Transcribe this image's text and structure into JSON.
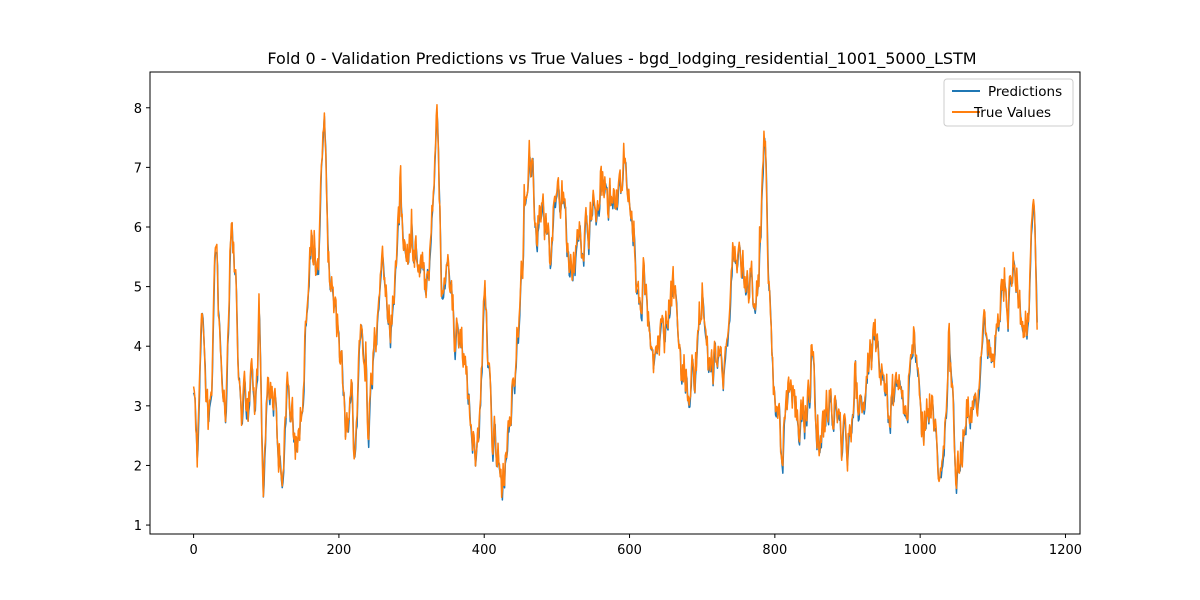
{
  "chart_data": {
    "type": "line",
    "title": "Fold 0 - Validation Predictions vs True Values - bgd_lodging_residential_1001_5000_LSTM",
    "xlabel": "",
    "ylabel": "",
    "xlim": [
      -60,
      1220
    ],
    "ylim": [
      0.85,
      8.6
    ],
    "x_ticks": [
      0,
      200,
      400,
      600,
      800,
      1000,
      1200
    ],
    "y_ticks": [
      1,
      2,
      3,
      4,
      5,
      6,
      7,
      8
    ],
    "grid": false,
    "legend_position": "top-right",
    "n_points": 1162,
    "series": [
      {
        "name": "Predictions",
        "color": "#1f77b4",
        "line_width": 1.5
      },
      {
        "name": "True Values",
        "color": "#ff7f0e",
        "line_width": 1.5
      }
    ],
    "true_values_envelope": {
      "x": [
        0,
        5,
        10,
        15,
        20,
        25,
        30,
        35,
        40,
        45,
        50,
        55,
        60,
        65,
        70,
        75,
        80,
        85,
        90,
        95,
        100,
        110,
        120,
        130,
        140,
        150,
        160,
        170,
        175,
        180,
        185,
        190,
        200,
        210,
        215,
        220,
        230,
        240,
        250,
        260,
        270,
        280,
        290,
        300,
        310,
        320,
        330,
        335,
        340,
        350,
        360,
        370,
        380,
        390,
        400,
        410,
        420,
        425,
        430,
        440,
        450,
        460,
        465,
        470,
        480,
        490,
        500,
        510,
        520,
        530,
        540,
        550,
        560,
        570,
        580,
        590,
        600,
        610,
        620,
        630,
        640,
        650,
        660,
        670,
        680,
        690,
        700,
        710,
        720,
        730,
        740,
        750,
        760,
        770,
        780,
        785,
        790,
        800,
        810,
        820,
        830,
        840,
        850,
        860,
        870,
        880,
        890,
        900,
        910,
        920,
        930,
        940,
        950,
        960,
        970,
        980,
        990,
        1000,
        1010,
        1020,
        1025,
        1030,
        1040,
        1050,
        1060,
        1070,
        1080,
        1090,
        1100,
        1110,
        1120,
        1130,
        1140,
        1150,
        1155,
        1161
      ],
      "values": [
        3.3,
        2.0,
        4.9,
        3.6,
        2.6,
        3.2,
        6.2,
        4.2,
        3.4,
        3.0,
        6.3,
        5.6,
        4.2,
        2.7,
        3.2,
        2.9,
        4.1,
        2.6,
        4.8,
        1.2,
        3.3,
        3.1,
        1.7,
        3.6,
        2.2,
        3.3,
        6.1,
        5.2,
        6.6,
        8.15,
        5.2,
        4.6,
        4.1,
        2.4,
        3.6,
        2.3,
        4.5,
        2.6,
        4.2,
        5.2,
        4.4,
        6.0,
        5.7,
        5.6,
        5.4,
        4.9,
        6.7,
        8.1,
        4.7,
        5.5,
        4.1,
        4.0,
        2.6,
        2.3,
        4.9,
        2.6,
        2.1,
        1.6,
        2.4,
        3.6,
        4.9,
        7.3,
        6.9,
        5.8,
        6.2,
        5.5,
        6.9,
        6.3,
        5.0,
        5.7,
        6.0,
        6.2,
        6.8,
        6.6,
        6.1,
        6.9,
        6.2,
        4.6,
        5.1,
        3.6,
        4.0,
        4.3,
        5.0,
        3.7,
        3.5,
        3.6,
        5.1,
        3.3,
        4.0,
        3.6,
        5.5,
        5.7,
        5.3,
        4.9,
        5.5,
        8.2,
        5.0,
        2.7,
        2.4,
        3.3,
        2.9,
        2.6,
        3.8,
        2.2,
        2.9,
        3.1,
        2.5,
        2.3,
        3.3,
        3.0,
        3.8,
        4.1,
        3.2,
        3.1,
        3.4,
        3.0,
        4.2,
        2.6,
        3.0,
        2.8,
        1.4,
        2.4,
        3.6,
        1.6,
        2.7,
        3.0,
        3.1,
        4.4,
        3.6,
        4.9,
        4.7,
        5.5,
        4.0,
        4.9,
        6.4,
        4.5
      ]
    }
  }
}
